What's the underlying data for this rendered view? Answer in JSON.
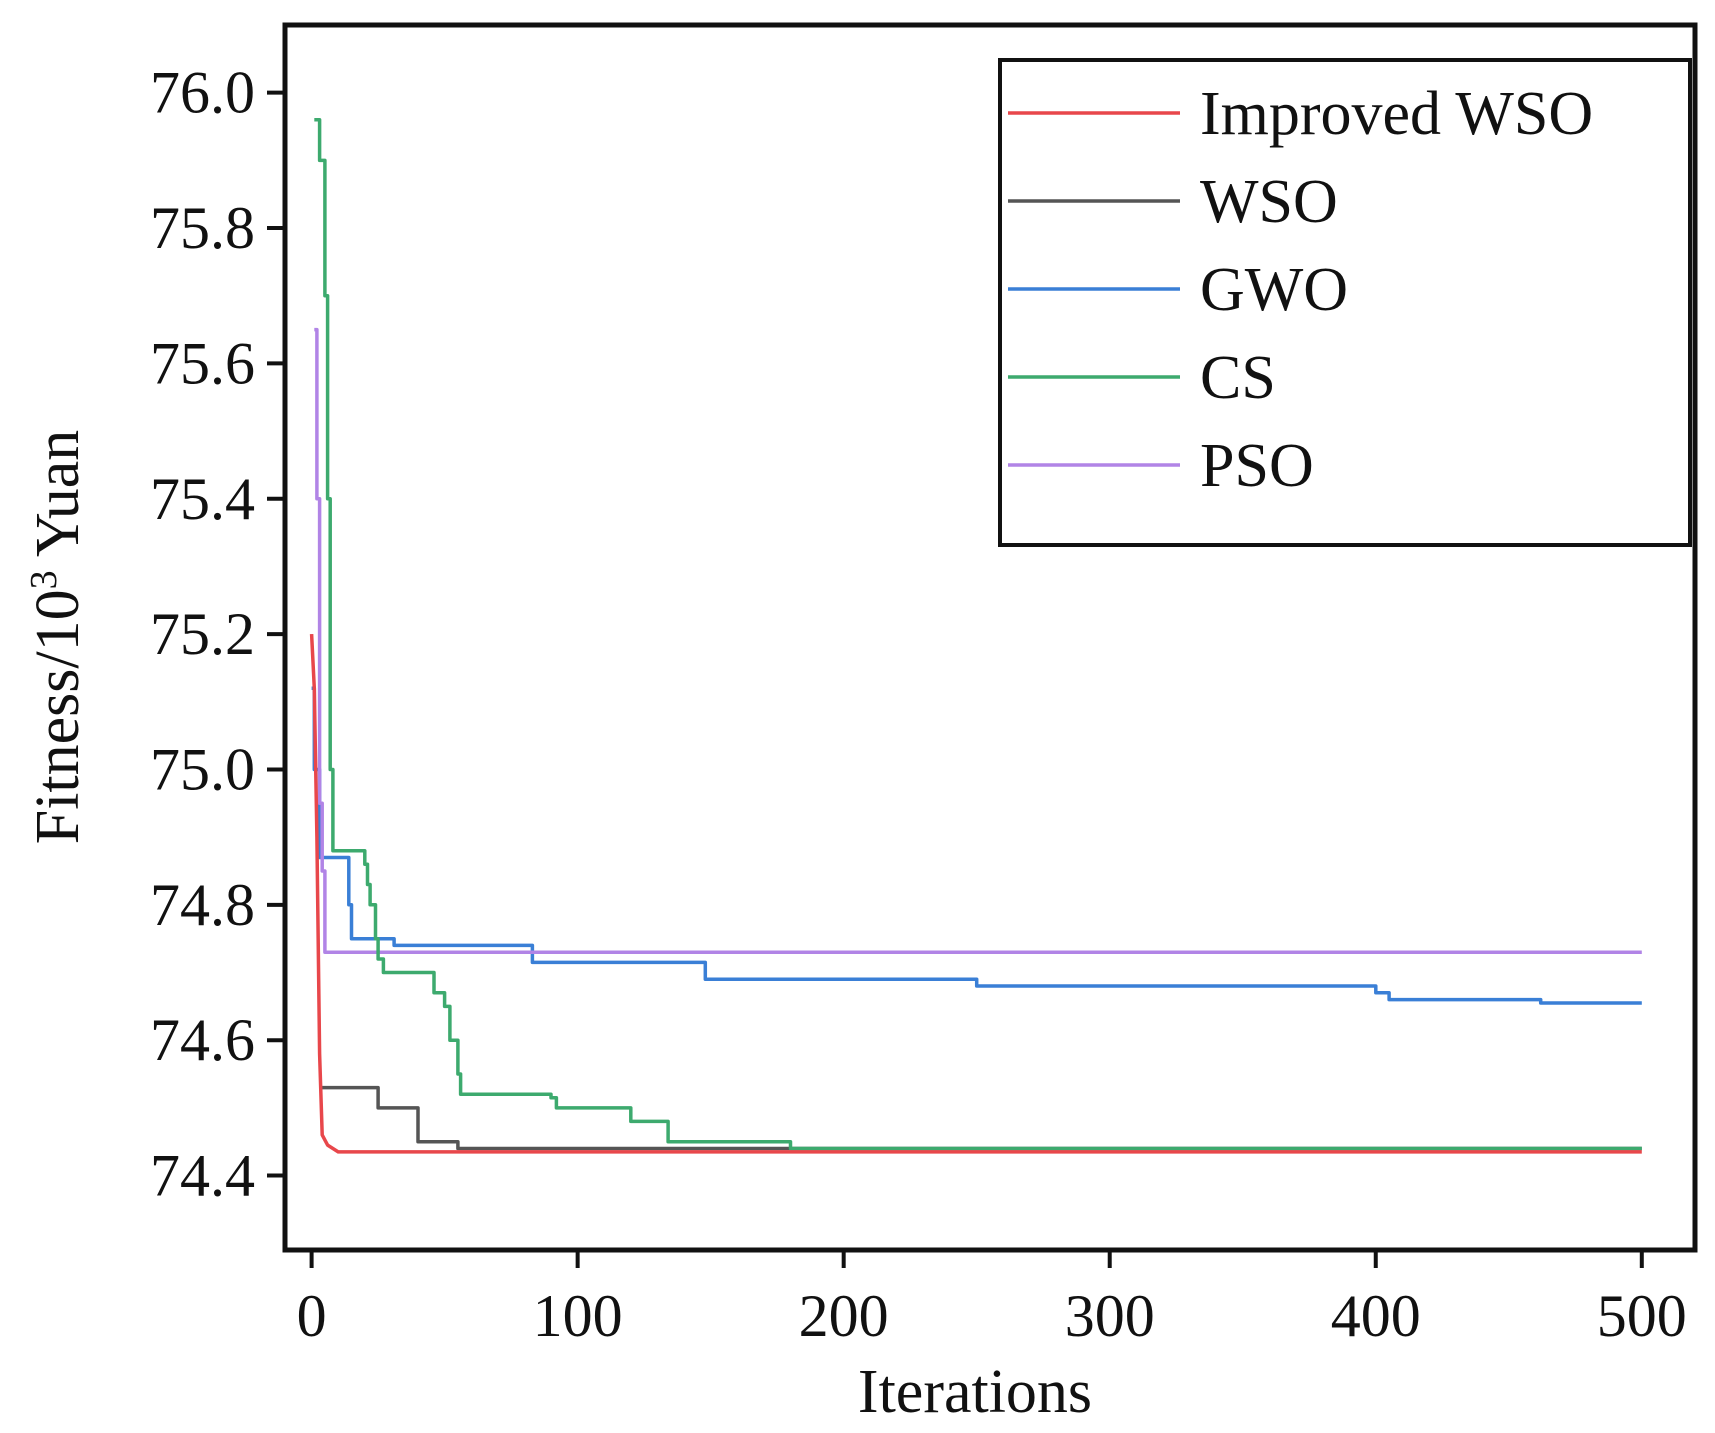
{
  "chart_data": {
    "type": "line",
    "title": "",
    "xlabel": "Iterations",
    "ylabel": {
      "prefix": "Fitness/10",
      "superscript": "3",
      "suffix": " Yuan"
    },
    "xlim": [
      -10,
      520
    ],
    "ylim": [
      74.29,
      76.1
    ],
    "xticks": [
      0,
      100,
      200,
      300,
      400,
      500
    ],
    "xtick_labels": [
      "0",
      "100",
      "200",
      "300",
      "400",
      "500"
    ],
    "yticks": [
      74.4,
      74.6,
      74.8,
      75.0,
      75.2,
      75.4,
      75.6,
      75.8,
      76.0
    ],
    "ytick_labels": [
      "74.4",
      "74.6",
      "74.8",
      "75.0",
      "75.2",
      "75.4",
      "75.6",
      "75.8",
      "76.0"
    ],
    "legend_position": "top-right",
    "step_series": [
      "WSO",
      "GWO",
      "CS",
      "PSO"
    ],
    "series": [
      {
        "name": "Improved WSO",
        "color": "#e8474b",
        "points": [
          [
            0,
            75.2
          ],
          [
            1,
            75.12
          ],
          [
            2,
            74.9
          ],
          [
            3,
            74.58
          ],
          [
            4,
            74.46
          ],
          [
            6,
            74.445
          ],
          [
            10,
            74.435
          ],
          [
            500,
            74.435
          ]
        ]
      },
      {
        "name": "WSO",
        "color": "#555555",
        "points": [
          [
            3,
            74.53
          ],
          [
            20,
            74.53
          ],
          [
            25,
            74.5
          ],
          [
            38,
            74.5
          ],
          [
            40,
            74.45
          ],
          [
            52,
            74.45
          ],
          [
            55,
            74.44
          ],
          [
            500,
            74.44
          ]
        ]
      },
      {
        "name": "GWO",
        "color": "#3a7fd6",
        "points": [
          [
            0,
            75.12
          ],
          [
            1,
            75.0
          ],
          [
            3,
            74.87
          ],
          [
            12,
            74.87
          ],
          [
            14,
            74.8
          ],
          [
            15,
            74.75
          ],
          [
            30,
            74.75
          ],
          [
            31,
            74.74
          ],
          [
            82,
            74.74
          ],
          [
            83,
            74.715
          ],
          [
            145,
            74.715
          ],
          [
            148,
            74.69
          ],
          [
            240,
            74.69
          ],
          [
            250,
            74.68
          ],
          [
            390,
            74.68
          ],
          [
            400,
            74.67
          ],
          [
            405,
            74.66
          ],
          [
            460,
            74.66
          ],
          [
            462,
            74.655
          ],
          [
            500,
            74.655
          ]
        ]
      },
      {
        "name": "CS",
        "color": "#3daa6e",
        "points": [
          [
            1,
            75.96
          ],
          [
            3,
            75.9
          ],
          [
            5,
            75.7
          ],
          [
            6,
            75.4
          ],
          [
            7,
            75.0
          ],
          [
            8,
            74.88
          ],
          [
            15,
            74.88
          ],
          [
            20,
            74.86
          ],
          [
            21,
            74.83
          ],
          [
            22,
            74.8
          ],
          [
            24,
            74.75
          ],
          [
            25,
            74.72
          ],
          [
            27,
            74.7
          ],
          [
            45,
            74.7
          ],
          [
            46,
            74.67
          ],
          [
            50,
            74.65
          ],
          [
            52,
            74.6
          ],
          [
            55,
            74.55
          ],
          [
            56,
            74.52
          ],
          [
            72,
            74.52
          ],
          [
            90,
            74.515
          ],
          [
            92,
            74.5
          ],
          [
            118,
            74.5
          ],
          [
            120,
            74.48
          ],
          [
            132,
            74.48
          ],
          [
            134,
            74.45
          ],
          [
            160,
            74.45
          ],
          [
            180,
            74.44
          ],
          [
            500,
            74.44
          ]
        ]
      },
      {
        "name": "PSO",
        "color": "#b184e6",
        "points": [
          [
            1,
            75.65
          ],
          [
            2,
            75.4
          ],
          [
            3,
            74.95
          ],
          [
            4,
            74.85
          ],
          [
            5,
            74.73
          ],
          [
            500,
            74.73
          ]
        ]
      }
    ]
  }
}
